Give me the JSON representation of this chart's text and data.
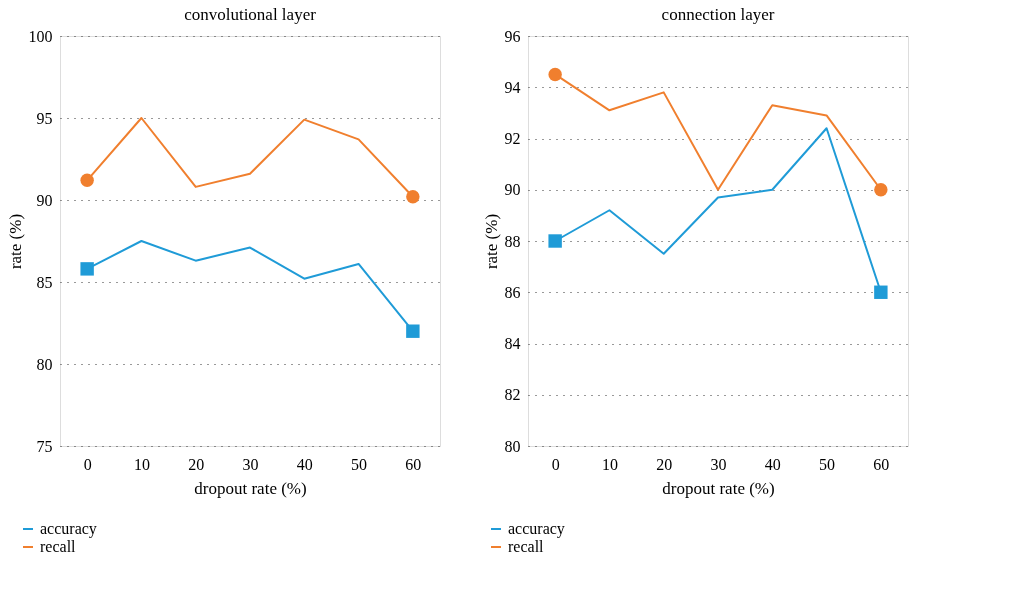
{
  "chart_data": [
    {
      "type": "line",
      "title": "convolutional layer",
      "xlabel": "dropout rate (%)",
      "ylabel": "rate (%)",
      "categories": [
        "0",
        "10",
        "20",
        "30",
        "40",
        "50",
        "60"
      ],
      "ylim": [
        75,
        100
      ],
      "yticks": [
        75,
        80,
        85,
        90,
        95,
        100
      ],
      "grid": "y",
      "legend": "bottom left",
      "series": [
        {
          "name": "accuracy",
          "color": "#1f9bd7",
          "values": [
            85.8,
            87.5,
            86.3,
            87.1,
            85.2,
            86.1,
            82.0
          ]
        },
        {
          "name": "recall",
          "color": "#f07f2e",
          "values": [
            91.2,
            95.0,
            90.8,
            91.6,
            94.9,
            93.7,
            90.2
          ]
        }
      ]
    },
    {
      "type": "line",
      "title": "connection layer",
      "xlabel": "dropout rate (%)",
      "ylabel": "rate (%)",
      "categories": [
        "0",
        "10",
        "20",
        "30",
        "40",
        "50",
        "60"
      ],
      "ylim": [
        80,
        96
      ],
      "yticks": [
        80,
        82,
        84,
        86,
        88,
        90,
        92,
        94,
        96
      ],
      "grid": "y",
      "legend": "bottom left",
      "series": [
        {
          "name": "accuracy",
          "color": "#1f9bd7",
          "values": [
            88.0,
            89.2,
            87.5,
            89.7,
            90.0,
            92.4,
            86.0
          ]
        },
        {
          "name": "recall",
          "color": "#f07f2e",
          "values": [
            94.5,
            93.1,
            93.8,
            90.0,
            93.3,
            92.9,
            90.0
          ]
        }
      ]
    }
  ]
}
